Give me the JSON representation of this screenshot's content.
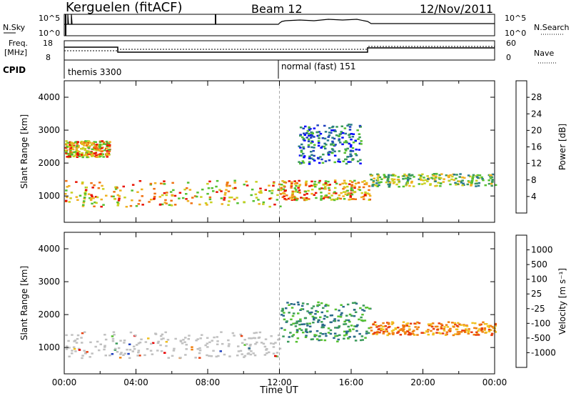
{
  "header": {
    "station": "Kerguelen (fitACF)",
    "beam": "Beam 12",
    "date": "12/Nov/2011"
  },
  "top_panels": {
    "nsky_label": "N.Sky",
    "nsky_ticks": [
      "10^5",
      "10^0"
    ],
    "nsearch_label": "N.Search",
    "nsearch_ticks": [
      "10^5",
      "10^0"
    ],
    "freq_label_1": "Freq.",
    "freq_label_2": "[MHz]",
    "freq_ticks": [
      "18",
      "8"
    ],
    "nave_label": "Nave",
    "nave_ticks": [
      "60",
      "0"
    ],
    "cpid_label": "CPID",
    "cpid_modes": [
      {
        "name": "themis 3300",
        "start_hour": 0
      },
      {
        "name": "normal (fast) 151",
        "start_hour": 12
      }
    ]
  },
  "chart_data": [
    {
      "type": "heatmap",
      "title": "",
      "ylabel": "Slant Range [km]",
      "xlabel": "",
      "xlim": [
        0,
        24
      ],
      "ylim": [
        200,
        4500
      ],
      "yticks": [
        "4000",
        "3000",
        "2000",
        "1000"
      ],
      "colorbar": {
        "label": "Power [dB]",
        "ticks": [
          "28",
          "24",
          "20",
          "16",
          "12",
          "8",
          "4"
        ],
        "colors": [
          "#0000ff",
          "#1e3fbf",
          "#2a7a8c",
          "#3a9a5a",
          "#55c030",
          "#c8d020",
          "#f0b020",
          "#f07010",
          "#e81000"
        ]
      },
      "echo_bands": [
        {
          "t0": 0.0,
          "t1": 12.0,
          "r0": 700,
          "r1": 1500,
          "level": "high"
        },
        {
          "t0": 0.0,
          "t1": 2.5,
          "r0": 2200,
          "r1": 2700,
          "level": "high"
        },
        {
          "t0": 12.0,
          "t1": 17.0,
          "r0": 900,
          "r1": 1500,
          "level": "high"
        },
        {
          "t0": 17.0,
          "t1": 24.0,
          "r0": 1300,
          "r1": 1700,
          "level": "medium"
        },
        {
          "t0": 13.0,
          "t1": 16.5,
          "r0": 2000,
          "r1": 3200,
          "level": "low"
        }
      ]
    },
    {
      "type": "heatmap",
      "title": "",
      "ylabel": "Slant Range [km]",
      "xlabel": "Time UT",
      "xlim": [
        0,
        24
      ],
      "ylim": [
        200,
        4500
      ],
      "xticks": [
        "00:00",
        "04:00",
        "08:00",
        "12:00",
        "16:00",
        "20:00",
        "00:00"
      ],
      "yticks": [
        "4000",
        "3000",
        "2000",
        "1000"
      ],
      "colorbar": {
        "label": "Velocity [m s⁻¹]",
        "ticks": [
          "1000",
          "500",
          "100",
          "25",
          "-25",
          "-100",
          "-500",
          "-1000"
        ],
        "colors": [
          "#1f3fbf",
          "#2a6a8a",
          "#3a9a5a",
          "#55c030",
          "#c0c0c0",
          "#f0c020",
          "#f08010",
          "#e84010",
          "#e80000"
        ]
      },
      "echo_bands": [
        {
          "t0": 0.0,
          "t1": 12.0,
          "r0": 700,
          "r1": 1500,
          "level": "ground"
        },
        {
          "t0": 12.0,
          "t1": 17.0,
          "r0": 1200,
          "r1": 2400,
          "level": "positive"
        },
        {
          "t0": 17.0,
          "t1": 24.0,
          "r0": 1400,
          "r1": 1800,
          "level": "negative"
        }
      ]
    }
  ]
}
